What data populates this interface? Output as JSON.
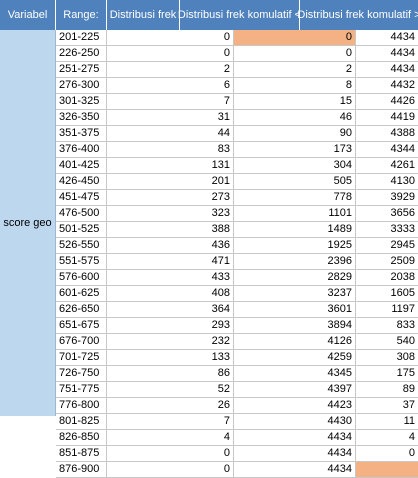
{
  "headers": {
    "variabel": "Variabel",
    "range": "Range:",
    "freq": "Distribusi frek",
    "kum_less": "Distribusi frek komulatif <",
    "kum_more": "Distribusi frek komulatif >"
  },
  "variable_name": "score geo",
  "colors": {
    "header_bg": "#4f81bd",
    "variable_bg": "#bdd7ee",
    "highlight": "#f4b183"
  },
  "rows": [
    {
      "range": "201-225",
      "freq": "0",
      "kless": "0",
      "kmore": "4434"
    },
    {
      "range": "226-250",
      "freq": "0",
      "kless": "0",
      "kmore": "4434"
    },
    {
      "range": "251-275",
      "freq": "2",
      "kless": "2",
      "kmore": "4434"
    },
    {
      "range": "276-300",
      "freq": "6",
      "kless": "8",
      "kmore": "4432"
    },
    {
      "range": "301-325",
      "freq": "7",
      "kless": "15",
      "kmore": "4426"
    },
    {
      "range": "326-350",
      "freq": "31",
      "kless": "46",
      "kmore": "4419"
    },
    {
      "range": "351-375",
      "freq": "44",
      "kless": "90",
      "kmore": "4388"
    },
    {
      "range": "376-400",
      "freq": "83",
      "kless": "173",
      "kmore": "4344"
    },
    {
      "range": "401-425",
      "freq": "131",
      "kless": "304",
      "kmore": "4261"
    },
    {
      "range": "426-450",
      "freq": "201",
      "kless": "505",
      "kmore": "4130"
    },
    {
      "range": "451-475",
      "freq": "273",
      "kless": "778",
      "kmore": "3929"
    },
    {
      "range": "476-500",
      "freq": "323",
      "kless": "1101",
      "kmore": "3656"
    },
    {
      "range": "501-525",
      "freq": "388",
      "kless": "1489",
      "kmore": "3333"
    },
    {
      "range": "526-550",
      "freq": "436",
      "kless": "1925",
      "kmore": "2945"
    },
    {
      "range": "551-575",
      "freq": "471",
      "kless": "2396",
      "kmore": "2509"
    },
    {
      "range": "576-600",
      "freq": "433",
      "kless": "2829",
      "kmore": "2038"
    },
    {
      "range": "601-625",
      "freq": "408",
      "kless": "3237",
      "kmore": "1605"
    },
    {
      "range": "626-650",
      "freq": "364",
      "kless": "3601",
      "kmore": "1197"
    },
    {
      "range": "651-675",
      "freq": "293",
      "kless": "3894",
      "kmore": "833"
    },
    {
      "range": "676-700",
      "freq": "232",
      "kless": "4126",
      "kmore": "540"
    },
    {
      "range": "701-725",
      "freq": "133",
      "kless": "4259",
      "kmore": "308"
    },
    {
      "range": "726-750",
      "freq": "86",
      "kless": "4345",
      "kmore": "175"
    },
    {
      "range": "751-775",
      "freq": "52",
      "kless": "4397",
      "kmore": "89"
    },
    {
      "range": "776-800",
      "freq": "26",
      "kless": "4423",
      "kmore": "37"
    },
    {
      "range": "801-825",
      "freq": "7",
      "kless": "4430",
      "kmore": "11"
    },
    {
      "range": "826-850",
      "freq": "4",
      "kless": "4434",
      "kmore": "4"
    },
    {
      "range": "851-875",
      "freq": "0",
      "kless": "4434",
      "kmore": "0"
    },
    {
      "range": "876-900",
      "freq": "0",
      "kless": "4434",
      "kmore": ""
    }
  ]
}
